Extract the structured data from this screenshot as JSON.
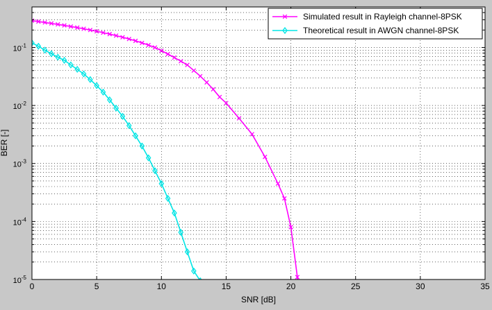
{
  "chart_data": {
    "type": "line",
    "title": "",
    "xlabel": "SNR [dB]",
    "ylabel": "BER [-]",
    "xlim": [
      0,
      35
    ],
    "ylim": [
      1e-05,
      0.5
    ],
    "yscale": "log",
    "grid": true,
    "legend_position": "top-right",
    "x_ticks": [
      "0",
      "5",
      "10",
      "15",
      "20",
      "25",
      "30",
      "35"
    ],
    "y_ticks": [
      {
        "base": "10",
        "exp": "-5"
      },
      {
        "base": "10",
        "exp": "-4"
      },
      {
        "base": "10",
        "exp": "-3"
      },
      {
        "base": "10",
        "exp": "-2"
      },
      {
        "base": "10",
        "exp": "-1"
      }
    ],
    "series": [
      {
        "name": "Simulated result in Rayleigh channel-8PSK",
        "color": "#ff00ff",
        "marker": "x",
        "x": [
          0,
          0.5,
          1,
          1.5,
          2,
          2.5,
          3,
          3.5,
          4,
          4.5,
          5,
          5.5,
          6,
          6.5,
          7,
          7.5,
          8,
          8.5,
          9,
          9.5,
          10,
          10.5,
          11,
          11.5,
          12,
          12.5,
          13,
          13.5,
          14,
          14.5,
          15,
          16,
          17,
          18,
          19,
          19.5,
          20,
          20.5
        ],
        "y": [
          0.29,
          0.28,
          0.27,
          0.26,
          0.25,
          0.24,
          0.23,
          0.22,
          0.21,
          0.2,
          0.19,
          0.18,
          0.17,
          0.16,
          0.15,
          0.14,
          0.13,
          0.12,
          0.11,
          0.1,
          0.088,
          0.077,
          0.067,
          0.058,
          0.05,
          0.04,
          0.032,
          0.025,
          0.019,
          0.014,
          0.011,
          0.006,
          0.0032,
          0.0013,
          0.00045,
          0.00025,
          8e-05,
          1.1e-05
        ]
      },
      {
        "name": "Theoretical result in AWGN channel-8PSK",
        "color": "#00e5e5",
        "marker": "diamond",
        "x": [
          0,
          0.5,
          1,
          1.5,
          2,
          2.5,
          3,
          3.5,
          4,
          4.5,
          5,
          5.5,
          6,
          6.5,
          7,
          7.5,
          8,
          8.5,
          9,
          9.5,
          10,
          10.5,
          11,
          11.5,
          12,
          12.5,
          13
        ],
        "y": [
          0.12,
          0.105,
          0.09,
          0.078,
          0.068,
          0.06,
          0.05,
          0.042,
          0.035,
          0.028,
          0.022,
          0.017,
          0.0125,
          0.009,
          0.0065,
          0.0045,
          0.003,
          0.002,
          0.00125,
          0.00075,
          0.00045,
          0.00025,
          0.00014,
          6.5e-05,
          3e-05,
          1.4e-05,
          9.5e-06
        ]
      }
    ]
  }
}
